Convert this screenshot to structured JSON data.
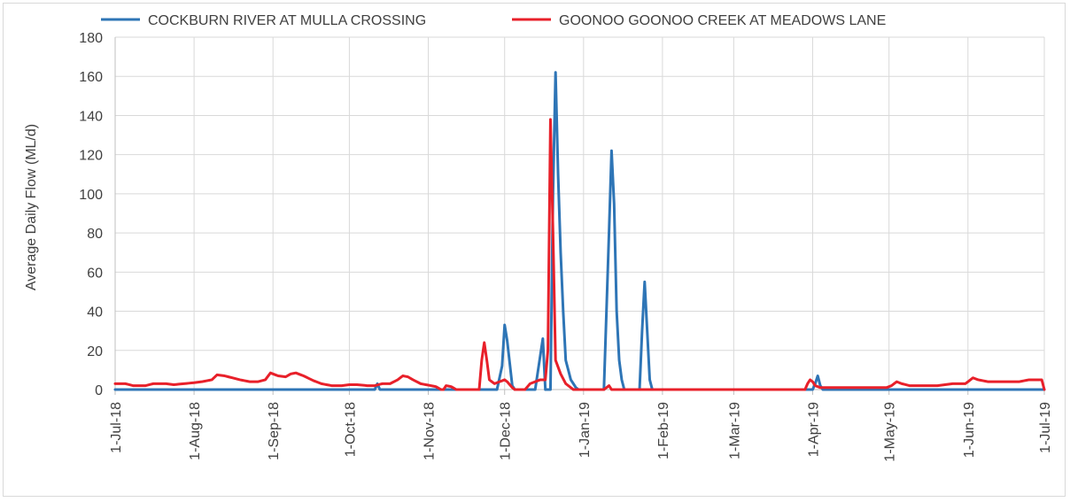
{
  "chart_data": {
    "type": "line",
    "title": "",
    "xlabel": "",
    "ylabel": "Average Daily Flow (ML/d)",
    "ylim": [
      0,
      180
    ],
    "yticks": [
      0,
      20,
      40,
      60,
      80,
      100,
      120,
      140,
      160,
      180
    ],
    "xlim": [
      "2018-07-01",
      "2019-07-01"
    ],
    "xticks": [
      {
        "date": "2018-07-01",
        "label": "1-Jul-18"
      },
      {
        "date": "2018-08-01",
        "label": "1-Aug-18"
      },
      {
        "date": "2018-09-01",
        "label": "1-Sep-18"
      },
      {
        "date": "2018-10-01",
        "label": "1-Oct-18"
      },
      {
        "date": "2018-11-01",
        "label": "1-Nov-18"
      },
      {
        "date": "2018-12-01",
        "label": "1-Dec-18"
      },
      {
        "date": "2019-01-01",
        "label": "1-Jan-19"
      },
      {
        "date": "2019-02-01",
        "label": "1-Feb-19"
      },
      {
        "date": "2019-03-01",
        "label": "1-Mar-19"
      },
      {
        "date": "2019-04-01",
        "label": "1-Apr-19"
      },
      {
        "date": "2019-05-01",
        "label": "1-May-19"
      },
      {
        "date": "2019-06-01",
        "label": "1-Jun-19"
      },
      {
        "date": "2019-07-01",
        "label": "1-Jul-19"
      }
    ],
    "grid": true,
    "legend_position": "top",
    "series": [
      {
        "name": "COCKBURN RIVER AT MULLA CROSSING",
        "color": "#2e75b6",
        "points": [
          [
            "2018-10-11",
            0
          ],
          [
            "2018-10-12",
            3
          ],
          [
            "2018-10-13",
            0
          ],
          [
            "2018-11-28",
            0
          ],
          [
            "2018-11-30",
            12
          ],
          [
            "2018-12-01",
            33
          ],
          [
            "2018-12-02",
            25
          ],
          [
            "2018-12-04",
            2
          ],
          [
            "2018-12-05",
            0
          ],
          [
            "2018-12-13",
            0
          ],
          [
            "2018-12-16",
            26
          ],
          [
            "2018-12-17",
            0
          ],
          [
            "2018-12-19",
            0
          ],
          [
            "2018-12-20",
            100
          ],
          [
            "2018-12-21",
            162
          ],
          [
            "2018-12-22",
            110
          ],
          [
            "2018-12-23",
            70
          ],
          [
            "2018-12-24",
            40
          ],
          [
            "2018-12-25",
            15
          ],
          [
            "2018-12-27",
            5
          ],
          [
            "2018-12-29",
            1
          ],
          [
            "2018-12-30",
            0
          ],
          [
            "2019-01-09",
            0
          ],
          [
            "2019-01-11",
            80
          ],
          [
            "2019-01-12",
            122
          ],
          [
            "2019-01-13",
            95
          ],
          [
            "2019-01-14",
            40
          ],
          [
            "2019-01-15",
            15
          ],
          [
            "2019-01-16",
            5
          ],
          [
            "2019-01-17",
            0
          ],
          [
            "2019-01-23",
            0
          ],
          [
            "2019-01-24",
            30
          ],
          [
            "2019-01-25",
            55
          ],
          [
            "2019-01-26",
            30
          ],
          [
            "2019-01-27",
            5
          ],
          [
            "2019-01-28",
            0
          ],
          [
            "2019-04-01",
            0
          ],
          [
            "2019-04-02",
            3
          ],
          [
            "2019-04-03",
            7
          ],
          [
            "2019-04-04",
            2
          ],
          [
            "2019-04-05",
            0
          ]
        ]
      },
      {
        "name": "GOONOO GOONOO CREEK AT MEADOWS LANE",
        "color": "#e8202a",
        "points": [
          [
            "2018-07-01",
            3
          ],
          [
            "2018-07-05",
            3
          ],
          [
            "2018-07-08",
            2
          ],
          [
            "2018-07-13",
            2
          ],
          [
            "2018-07-16",
            3
          ],
          [
            "2018-07-21",
            3
          ],
          [
            "2018-07-24",
            2.5
          ],
          [
            "2018-07-28",
            3
          ],
          [
            "2018-08-01",
            3.5
          ],
          [
            "2018-08-04",
            4
          ],
          [
            "2018-08-08",
            5
          ],
          [
            "2018-08-10",
            7.5
          ],
          [
            "2018-08-13",
            7
          ],
          [
            "2018-08-16",
            6
          ],
          [
            "2018-08-19",
            5
          ],
          [
            "2018-08-23",
            4
          ],
          [
            "2018-08-26",
            4
          ],
          [
            "2018-08-29",
            5
          ],
          [
            "2018-08-31",
            8.5
          ],
          [
            "2018-09-03",
            7
          ],
          [
            "2018-09-06",
            6.5
          ],
          [
            "2018-09-08",
            8
          ],
          [
            "2018-09-10",
            8.5
          ],
          [
            "2018-09-13",
            7
          ],
          [
            "2018-09-17",
            4.5
          ],
          [
            "2018-09-20",
            3
          ],
          [
            "2018-09-24",
            2
          ],
          [
            "2018-09-28",
            2
          ],
          [
            "2018-10-01",
            2.5
          ],
          [
            "2018-10-04",
            2.5
          ],
          [
            "2018-10-08",
            2
          ],
          [
            "2018-10-11",
            2
          ],
          [
            "2018-10-14",
            3
          ],
          [
            "2018-10-17",
            3
          ],
          [
            "2018-10-20",
            5
          ],
          [
            "2018-10-22",
            7
          ],
          [
            "2018-10-24",
            6.5
          ],
          [
            "2018-10-26",
            5
          ],
          [
            "2018-10-29",
            3
          ],
          [
            "2018-11-02",
            2
          ],
          [
            "2018-11-04",
            1.5
          ],
          [
            "2018-11-06",
            0
          ],
          [
            "2018-11-07",
            0
          ],
          [
            "2018-11-08",
            2
          ],
          [
            "2018-11-10",
            1.5
          ],
          [
            "2018-11-12",
            0
          ],
          [
            "2018-11-21",
            0
          ],
          [
            "2018-11-22",
            15
          ],
          [
            "2018-11-23",
            24
          ],
          [
            "2018-11-24",
            15
          ],
          [
            "2018-11-25",
            5
          ],
          [
            "2018-11-27",
            3
          ],
          [
            "2018-11-29",
            4
          ],
          [
            "2018-12-01",
            5
          ],
          [
            "2018-12-02",
            4
          ],
          [
            "2018-12-04",
            1
          ],
          [
            "2018-12-05",
            0
          ],
          [
            "2018-12-09",
            0
          ],
          [
            "2018-12-11",
            3
          ],
          [
            "2018-12-13",
            4
          ],
          [
            "2018-12-15",
            5
          ],
          [
            "2018-12-17",
            5
          ],
          [
            "2018-12-18",
            20
          ],
          [
            "2018-12-19",
            138
          ],
          [
            "2018-12-20",
            80
          ],
          [
            "2018-12-21",
            15
          ],
          [
            "2018-12-23",
            8
          ],
          [
            "2018-12-25",
            3
          ],
          [
            "2018-12-27",
            1
          ],
          [
            "2018-12-28",
            0
          ],
          [
            "2019-01-09",
            0
          ],
          [
            "2019-01-11",
            2
          ],
          [
            "2019-01-12",
            0
          ],
          [
            "2019-03-29",
            0
          ],
          [
            "2019-03-30",
            3
          ],
          [
            "2019-03-31",
            5
          ],
          [
            "2019-04-01",
            4
          ],
          [
            "2019-04-02",
            2
          ],
          [
            "2019-04-04",
            1
          ],
          [
            "2019-04-10",
            1
          ],
          [
            "2019-04-20",
            1
          ],
          [
            "2019-04-30",
            1
          ],
          [
            "2019-05-02",
            2
          ],
          [
            "2019-05-04",
            4
          ],
          [
            "2019-05-06",
            3
          ],
          [
            "2019-05-09",
            2
          ],
          [
            "2019-05-14",
            2
          ],
          [
            "2019-05-20",
            2
          ],
          [
            "2019-05-26",
            3
          ],
          [
            "2019-05-31",
            3
          ],
          [
            "2019-06-01",
            4
          ],
          [
            "2019-06-03",
            6
          ],
          [
            "2019-06-05",
            5
          ],
          [
            "2019-06-09",
            4
          ],
          [
            "2019-06-15",
            4
          ],
          [
            "2019-06-21",
            4
          ],
          [
            "2019-06-25",
            5
          ],
          [
            "2019-06-29",
            5
          ],
          [
            "2019-06-30",
            5
          ],
          [
            "2019-07-01",
            0
          ]
        ]
      }
    ]
  }
}
